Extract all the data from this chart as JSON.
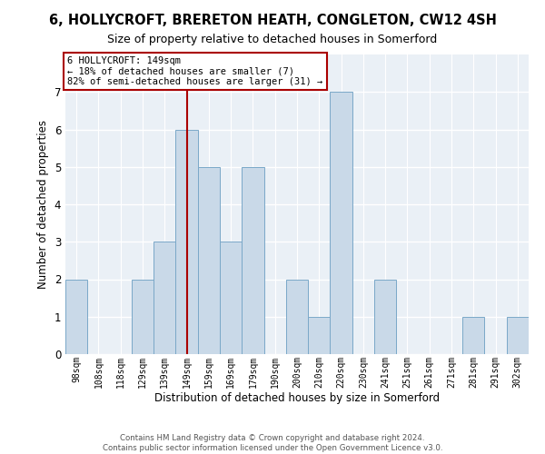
{
  "title": "6, HOLLYCROFT, BRERETON HEATH, CONGLETON, CW12 4SH",
  "subtitle": "Size of property relative to detached houses in Somerford",
  "xlabel": "Distribution of detached houses by size in Somerford",
  "ylabel": "Number of detached properties",
  "categories": [
    "98sqm",
    "108sqm",
    "118sqm",
    "129sqm",
    "139sqm",
    "149sqm",
    "159sqm",
    "169sqm",
    "179sqm",
    "190sqm",
    "200sqm",
    "210sqm",
    "220sqm",
    "230sqm",
    "241sqm",
    "251sqm",
    "261sqm",
    "271sqm",
    "281sqm",
    "291sqm",
    "302sqm"
  ],
  "values": [
    2,
    0,
    0,
    2,
    3,
    6,
    5,
    3,
    5,
    0,
    2,
    1,
    7,
    0,
    2,
    0,
    0,
    0,
    1,
    0,
    1
  ],
  "highlight_index": 5,
  "highlight_label": "6 HOLLYCROFT: 149sqm",
  "annotation_line1": "← 18% of detached houses are smaller (7)",
  "annotation_line2": "82% of semi-detached houses are larger (31) →",
  "bar_color": "#c9d9e8",
  "bar_edge_color": "#7aa8c8",
  "highlight_line_color": "#aa0000",
  "annotation_box_edge_color": "#aa0000",
  "ylim": [
    0,
    8
  ],
  "yticks": [
    0,
    1,
    2,
    3,
    4,
    5,
    6,
    7,
    8
  ],
  "footer_line1": "Contains HM Land Registry data © Crown copyright and database right 2024.",
  "footer_line2": "Contains public sector information licensed under the Open Government Licence v3.0.",
  "background_color": "#eaf0f6",
  "fig_width": 6.0,
  "fig_height": 5.0
}
